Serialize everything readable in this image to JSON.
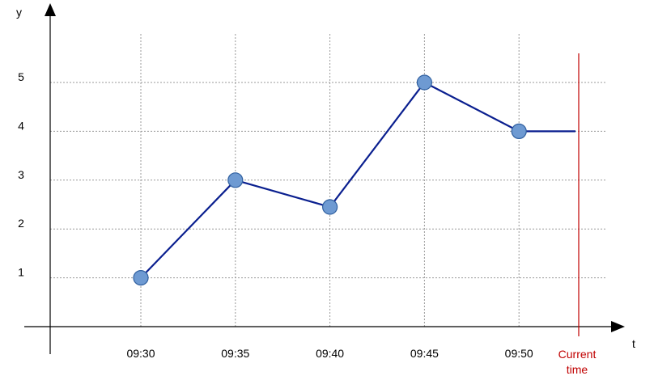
{
  "chart_data": {
    "type": "line",
    "title": "",
    "xlabel": "t",
    "ylabel": "y",
    "x": [
      "09:30",
      "09:35",
      "09:40",
      "09:45",
      "09:50"
    ],
    "series": [
      {
        "values": [
          1,
          3,
          2.45,
          5,
          4
        ]
      }
    ],
    "extension": {
      "from": "09:50",
      "value": 4,
      "until": "Current time"
    },
    "current_time_marker": {
      "label_line1": "Current",
      "label_line2": "time"
    },
    "y_ticks": [
      1,
      2,
      3,
      4,
      5
    ],
    "ylim": [
      0,
      5.8
    ],
    "grid": true,
    "colors": {
      "line": "#0a1f8f",
      "marker_fill": "#6e9ad2",
      "marker_stroke": "#2f5f9f",
      "current_time": "#c00000",
      "grid": "#9a9a9a",
      "axis": "#000000"
    }
  }
}
